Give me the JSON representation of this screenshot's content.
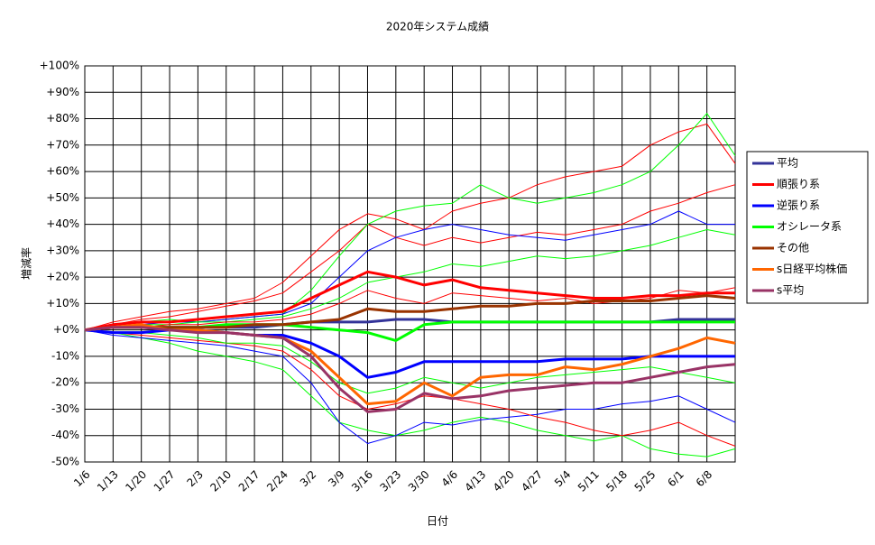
{
  "chart_data": {
    "type": "line",
    "title": "2020年システム成績",
    "x_label": "日付",
    "y_label": "増減率",
    "categories": [
      "1/6",
      "1/13",
      "1/20",
      "1/27",
      "2/3",
      "2/10",
      "2/17",
      "2/24",
      "3/2",
      "3/9",
      "3/16",
      "3/23",
      "3/30",
      "4/6",
      "4/13",
      "4/20",
      "4/27",
      "5/4",
      "5/11",
      "5/18",
      "5/25",
      "6/1",
      "6/8",
      null
    ],
    "ylim": [
      -50,
      100
    ],
    "yticks": [
      {
        "value": 100,
        "label": "+100%"
      },
      {
        "value": 90,
        "label": "+90%"
      },
      {
        "value": 80,
        "label": "+80%"
      },
      {
        "value": 70,
        "label": "+70%"
      },
      {
        "value": 60,
        "label": "+60%"
      },
      {
        "value": 50,
        "label": "+50%"
      },
      {
        "value": 40,
        "label": "+40%"
      },
      {
        "value": 30,
        "label": "+30%"
      },
      {
        "value": 20,
        "label": "+20%"
      },
      {
        "value": 10,
        "label": "+10%"
      },
      {
        "value": 0,
        "label": "+0%"
      },
      {
        "value": -10,
        "label": "-10%"
      },
      {
        "value": -20,
        "label": "-20%"
      },
      {
        "value": -30,
        "label": "-30%"
      },
      {
        "value": -40,
        "label": "-40%"
      },
      {
        "value": -50,
        "label": "-50%"
      }
    ],
    "grid": true,
    "legend": "right",
    "series": [
      {
        "color": "#ff0000",
        "values": [
          0,
          3,
          5,
          7,
          8,
          10,
          12,
          18,
          28,
          38,
          44,
          42,
          38,
          45,
          48,
          50,
          55,
          58,
          60,
          62,
          70,
          75,
          78,
          63
        ]
      },
      {
        "color": "#ff0000",
        "values": [
          0,
          2,
          4,
          5,
          7,
          9,
          11,
          14,
          22,
          30,
          40,
          35,
          32,
          35,
          33,
          35,
          37,
          36,
          38,
          40,
          45,
          48,
          52,
          55
        ]
      },
      {
        "color": "#00ff00",
        "values": [
          0,
          2,
          3,
          4,
          3,
          4,
          5,
          6,
          15,
          28,
          40,
          45,
          47,
          48,
          55,
          50,
          48,
          50,
          52,
          55,
          60,
          70,
          82,
          66
        ]
      },
      {
        "color": "#00ff00",
        "values": [
          0,
          -1,
          -3,
          -5,
          -8,
          -10,
          -12,
          -15,
          -25,
          -35,
          -38,
          -40,
          -38,
          -35,
          -33,
          -35,
          -38,
          -40,
          -42,
          -40,
          -45,
          -47,
          -48,
          -45
        ]
      },
      {
        "color": "#0000ff",
        "values": [
          0,
          -2,
          -3,
          -4,
          -5,
          -6,
          -8,
          -10,
          -20,
          -35,
          -43,
          -40,
          -35,
          -36,
          -34,
          -33,
          -32,
          -30,
          -30,
          -28,
          -27,
          -25,
          -30,
          -35
        ]
      },
      {
        "color": "#0000ff",
        "values": [
          0,
          1,
          2,
          3,
          3,
          4,
          5,
          6,
          10,
          20,
          30,
          35,
          38,
          40,
          38,
          36,
          35,
          34,
          36,
          38,
          40,
          45,
          40,
          40
        ]
      },
      {
        "color": "#ff0000",
        "values": [
          0,
          -1,
          -2,
          -3,
          -4,
          -5,
          -6,
          -8,
          -15,
          -25,
          -30,
          -28,
          -25,
          -26,
          -28,
          -30,
          -33,
          -35,
          -38,
          -40,
          -38,
          -35,
          -40,
          -44
        ]
      },
      {
        "color": "#00ff00",
        "values": [
          0,
          1,
          2,
          2,
          3,
          3,
          4,
          5,
          8,
          12,
          18,
          20,
          22,
          25,
          24,
          26,
          28,
          27,
          28,
          30,
          32,
          35,
          38,
          36
        ]
      },
      {
        "color": "#00ff00",
        "values": [
          0,
          -1,
          -1,
          -2,
          -3,
          -5,
          -5,
          -6,
          -12,
          -20,
          -24,
          -22,
          -18,
          -20,
          -22,
          -20,
          -18,
          -17,
          -16,
          -15,
          -14,
          -16,
          -18,
          -20
        ]
      },
      {
        "color": "#ff0000",
        "values": [
          0,
          1,
          1,
          2,
          2,
          3,
          3,
          4,
          6,
          10,
          15,
          12,
          10,
          14,
          13,
          12,
          11,
          12,
          10,
          11,
          12,
          15,
          14,
          16
        ]
      },
      {
        "name": "平均",
        "color": "#333399",
        "values": [
          0,
          1,
          1,
          1,
          1,
          1,
          1,
          2,
          3,
          3,
          3,
          4,
          4,
          3,
          3,
          3,
          3,
          3,
          3,
          3,
          3,
          4,
          4,
          4
        ]
      },
      {
        "name": "順張り系",
        "color": "#ff0000",
        "values": [
          0,
          2,
          3,
          3,
          4,
          5,
          6,
          7,
          12,
          17,
          22,
          20,
          17,
          19,
          16,
          15,
          14,
          13,
          12,
          12,
          13,
          13,
          14,
          14
        ]
      },
      {
        "name": "逆張り系",
        "color": "#0000ff",
        "values": [
          0,
          -1,
          -1,
          0,
          0,
          -1,
          -2,
          -2,
          -5,
          -10,
          -18,
          -16,
          -12,
          -12,
          -12,
          -12,
          -12,
          -11,
          -11,
          -11,
          -10,
          -10,
          -10,
          -10
        ]
      },
      {
        "name": "オシレータ系",
        "color": "#00ff00",
        "values": [
          0,
          1,
          1,
          1,
          1,
          2,
          2,
          2,
          1,
          0,
          -1,
          -4,
          2,
          3,
          3,
          3,
          3,
          3,
          3,
          3,
          3,
          3,
          3,
          3
        ]
      },
      {
        "name": "その他",
        "color": "#993300",
        "values": [
          0,
          1,
          1,
          1,
          1,
          1,
          2,
          2,
          3,
          4,
          8,
          7,
          7,
          8,
          9,
          9,
          10,
          10,
          11,
          11,
          11,
          12,
          13,
          12
        ]
      },
      {
        "name": "s日経平均株価",
        "color": "#ff6600",
        "values": [
          0,
          1,
          2,
          0,
          0,
          -1,
          -2,
          -3,
          -8,
          -18,
          -28,
          -27,
          -20,
          -25,
          -18,
          -17,
          -17,
          -14,
          -15,
          -13,
          -10,
          -7,
          -3,
          -5
        ]
      },
      {
        "name": "s平均",
        "color": "#993366",
        "values": [
          0,
          1,
          1,
          0,
          -1,
          -1,
          -2,
          -3,
          -10,
          -22,
          -31,
          -30,
          -24,
          -26,
          -25,
          -23,
          -22,
          -21,
          -20,
          -20,
          -18,
          -16,
          -14,
          -13
        ]
      }
    ]
  }
}
